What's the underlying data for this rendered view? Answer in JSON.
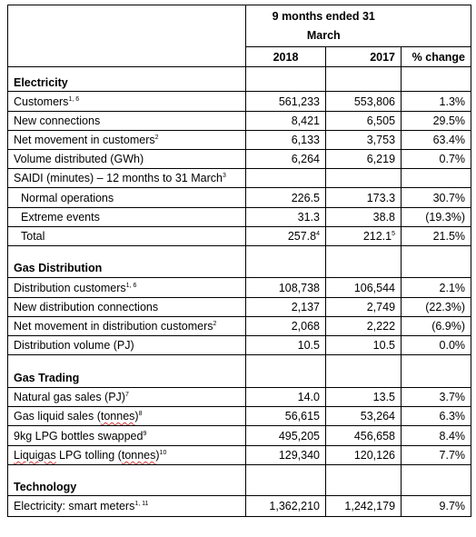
{
  "header": {
    "period": "9 months ended 31",
    "period_line2": "March",
    "col_2018": "2018",
    "col_2017": "2017",
    "col_change": "% change"
  },
  "electricity": {
    "title": "Electricity",
    "customers": {
      "label": "Customers",
      "sup": "1, 6",
      "v2018": "561,233",
      "v2017": "553,806",
      "change": "1.3%"
    },
    "new_connections": {
      "label": "New connections",
      "v2018": "8,421",
      "v2017": "6,505",
      "change": "29.5%"
    },
    "net_movement": {
      "label": "Net movement in customers",
      "sup": "2",
      "v2018": "6,133",
      "v2017": "3,753",
      "change": "63.4%"
    },
    "volume": {
      "label": "Volume distributed (GWh)",
      "v2018": "6,264",
      "v2017": "6,219",
      "change": "0.7%"
    },
    "saidi": {
      "label": "SAIDI (minutes) – 12 months to 31 March",
      "sup": "3"
    },
    "normal": {
      "label": "Normal operations",
      "v2018": "226.5",
      "v2017": "173.3",
      "change": "30.7%"
    },
    "extreme": {
      "label": "Extreme events",
      "v2018": "31.3",
      "v2017": "38.8",
      "change": "(19.3%)"
    },
    "total": {
      "label": "Total",
      "v2018": "257.8",
      "v2018_sup": "4",
      "v2017": "212.1",
      "v2017_sup": "5",
      "change": "21.5%"
    }
  },
  "gas_distribution": {
    "title": "Gas Distribution",
    "customers": {
      "label": "Distribution customers",
      "sup": "1, 6",
      "v2018": "108,738",
      "v2017": "106,544",
      "change": "2.1%"
    },
    "new_connections": {
      "label": "New distribution connections",
      "v2018": "2,137",
      "v2017": "2,749",
      "change": "(22.3%)"
    },
    "net_movement": {
      "label": "Net movement in distribution customers",
      "sup": "2",
      "v2018": "2,068",
      "v2017": "2,222",
      "change": "(6.9%)"
    },
    "volume": {
      "label": "Distribution volume (PJ)",
      "v2018": "10.5",
      "v2017": "10.5",
      "change": "0.0%"
    }
  },
  "gas_trading": {
    "title": "Gas Trading",
    "natural_gas": {
      "label": "Natural gas sales (PJ)",
      "sup": "7",
      "v2018": "14.0",
      "v2017": "13.5",
      "change": "3.7%"
    },
    "gas_liquid": {
      "label_pre": "Gas liquid sales (",
      "label_wavy": "tonnes",
      "label_post": ")",
      "sup": "8",
      "v2018": "56,615",
      "v2017": "53,264",
      "change": "6.3%"
    },
    "lpg_bottles": {
      "label": "9kg LPG bottles swapped",
      "sup": "9",
      "v2018": "495,205",
      "v2017": "456,658",
      "change": "8.4%"
    },
    "liquigas": {
      "label_wavy1": "Liquigas",
      "label_mid": " LPG tolling (",
      "label_wavy2": "tonnes",
      "label_post": ")",
      "sup": "10",
      "v2018": "129,340",
      "v2017": "120,126",
      "change": "7.7%"
    }
  },
  "technology": {
    "title": "Technology",
    "smart_meters": {
      "label": "Electricity: smart meters",
      "sup": "1, 11",
      "v2018": "1,362,210",
      "v2017": "1,242,179",
      "change": "9.7%"
    }
  }
}
